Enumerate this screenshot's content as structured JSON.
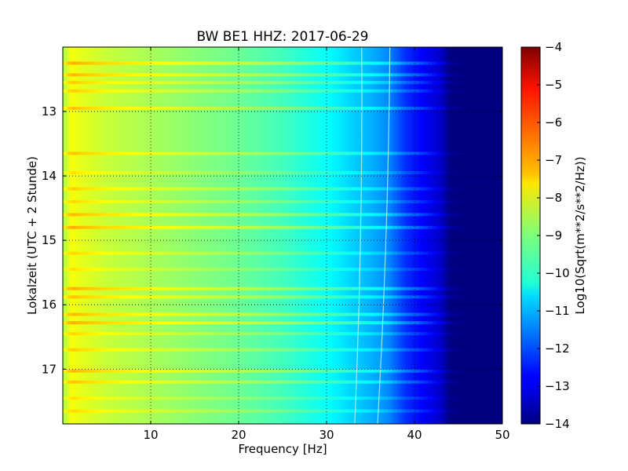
{
  "chart_data": {
    "type": "heatmap",
    "title": "BW BE1 HHZ: 2017-06-29",
    "xlabel": "Frequency [Hz]",
    "ylabel": "Lokalzeit (UTC + 2 Stunde)",
    "xlim": [
      0,
      50
    ],
    "ylim": [
      12.0,
      17.85
    ],
    "y_inverted": true,
    "x_ticks": [
      10,
      20,
      30,
      40,
      50
    ],
    "y_ticks": [
      13,
      14,
      15,
      16,
      17
    ],
    "grid": true,
    "colormap": "jet",
    "colorbar": {
      "label": "Log10(Sqrt(m**2/s**2/Hz))",
      "range": [
        -14,
        -4
      ],
      "ticks": [
        -4,
        -5,
        -6,
        -7,
        -8,
        -9,
        -10,
        -11,
        -12,
        -13,
        -14
      ]
    },
    "spectral_profile": {
      "frequency_hz": [
        0,
        1,
        2,
        5,
        10,
        15,
        20,
        25,
        30,
        33,
        35,
        37,
        39,
        41,
        43,
        44,
        50
      ],
      "level": [
        -8.6,
        -7.8,
        -8.0,
        -8.3,
        -8.6,
        -8.9,
        -9.2,
        -9.6,
        -10.2,
        -10.7,
        -11.0,
        -11.4,
        -12.3,
        -12.8,
        -13.3,
        -14.0,
        -14.0
      ]
    },
    "ridges": [
      {
        "start_hz": 34.0,
        "end_hz": 33.2
      },
      {
        "start_hz": 37.2,
        "end_hz": 35.8
      }
    ],
    "bands": [
      {
        "time": 12.25,
        "delta": 0.9
      },
      {
        "time": 12.43,
        "delta": 0.8
      },
      {
        "time": 12.55,
        "delta": 0.6
      },
      {
        "time": 12.68,
        "delta": 0.6
      },
      {
        "time": 12.95,
        "delta": 0.7
      },
      {
        "time": 13.65,
        "delta": 0.7
      },
      {
        "time": 13.95,
        "delta": 0.4
      },
      {
        "time": 14.2,
        "delta": 0.6
      },
      {
        "time": 14.4,
        "delta": 0.5
      },
      {
        "time": 14.6,
        "delta": 0.8
      },
      {
        "time": 14.8,
        "delta": 0.9
      },
      {
        "time": 15.2,
        "delta": 0.5
      },
      {
        "time": 15.45,
        "delta": 0.4
      },
      {
        "time": 15.75,
        "delta": 0.9
      },
      {
        "time": 15.88,
        "delta": 0.7
      },
      {
        "time": 16.15,
        "delta": 0.8
      },
      {
        "time": 16.28,
        "delta": 0.9
      },
      {
        "time": 16.45,
        "delta": 0.5
      },
      {
        "time": 16.7,
        "delta": 0.6
      },
      {
        "time": 17.03,
        "delta": 0.8
      },
      {
        "time": 17.2,
        "delta": 0.7
      },
      {
        "time": 17.45,
        "delta": 0.4
      },
      {
        "time": 17.65,
        "delta": 0.5
      }
    ]
  }
}
